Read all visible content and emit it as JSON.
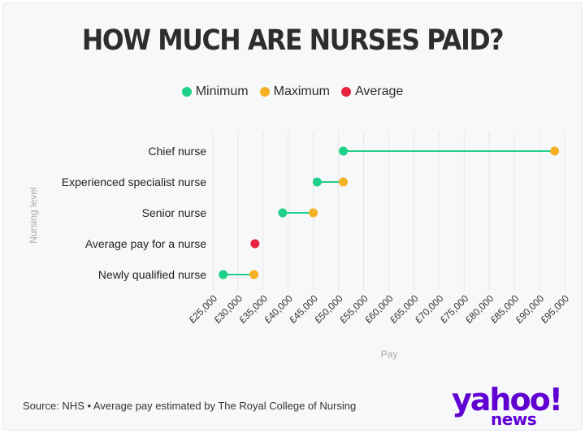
{
  "title": "HOW MUCH ARE NURSES PAID?",
  "legend": [
    {
      "label": "Minimum",
      "color": "#1fd088"
    },
    {
      "label": "Maximum",
      "color": "#f6b025"
    },
    {
      "label": "Average",
      "color": "#e8233f"
    }
  ],
  "source": "Source: NHS • Average pay estimated by The Royal College of Nursing",
  "logo": {
    "word": "yahoo!",
    "sub": "news"
  },
  "chart_data": {
    "type": "dumbbell",
    "title": "HOW MUCH ARE NURSES PAID?",
    "xlabel": "Pay",
    "ylabel": "Nursing level",
    "xlim": [
      25000,
      95000
    ],
    "xticks": [
      25000,
      30000,
      35000,
      40000,
      45000,
      50000,
      55000,
      60000,
      65000,
      70000,
      75000,
      80000,
      85000,
      90000,
      95000
    ],
    "xtick_labels": [
      "£25,000",
      "£30,000",
      "£35,000",
      "£40,000",
      "£45,000",
      "£50,000",
      "£55,000",
      "£60,000",
      "£65,000",
      "£70,000",
      "£75,000",
      "£80,000",
      "£85,000",
      "£90,000",
      "£95,000"
    ],
    "grid": "vertical",
    "legend_position": "top-center",
    "categories": [
      "Chief nurse",
      "Experienced specialist nurse",
      "Senior nurse",
      "Average pay for a nurse",
      "Newly qualified nurse"
    ],
    "series": [
      {
        "name": "Minimum",
        "color": "#1fd088",
        "values": [
          50960,
          45750,
          38890,
          null,
          27060
        ]
      },
      {
        "name": "Maximum",
        "color": "#f6b025",
        "values": [
          93000,
          50950,
          44960,
          null,
          33180
        ]
      },
      {
        "name": "Average",
        "color": "#e8233f",
        "values": [
          null,
          null,
          null,
          33380,
          null
        ]
      }
    ]
  }
}
